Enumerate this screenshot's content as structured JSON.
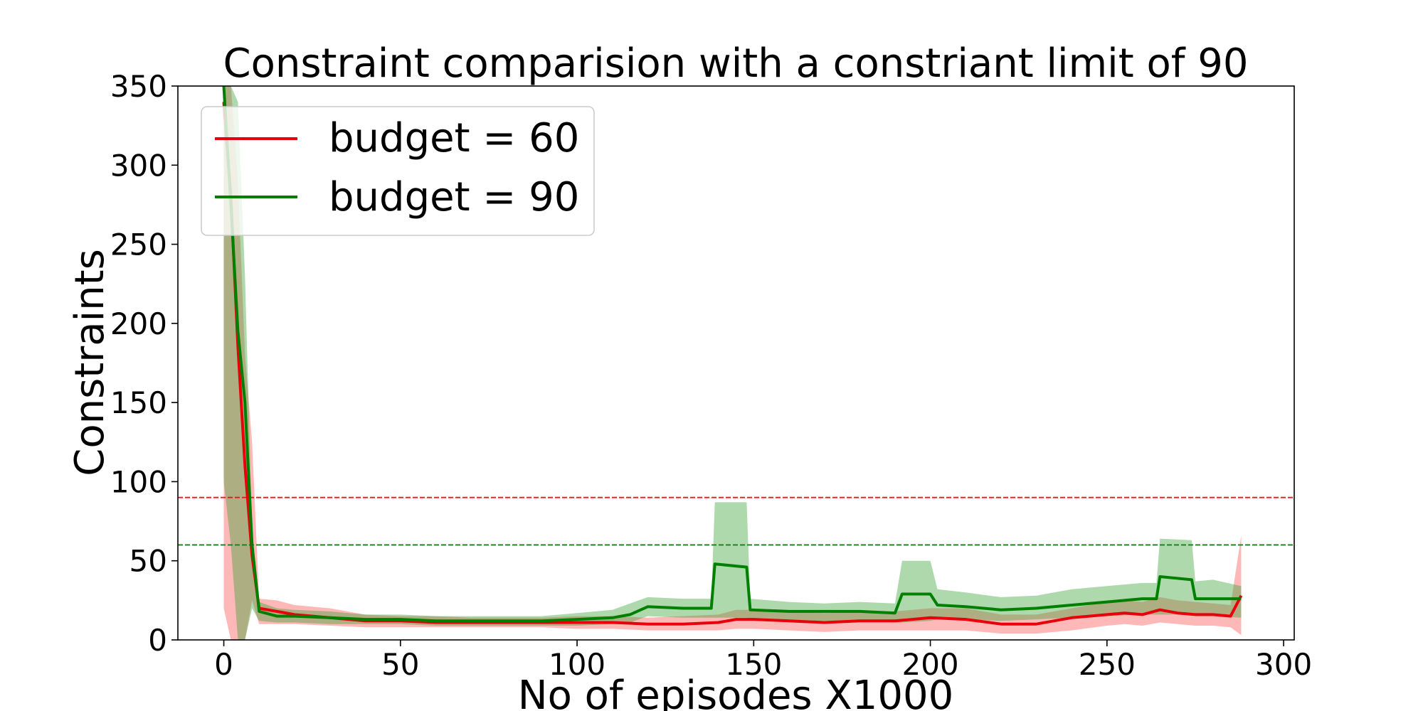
{
  "chart_data": {
    "type": "line",
    "title": "Constraint comparision with a constriant limit of 90",
    "xlabel": "No of episodes X1000",
    "ylabel": "Constraints",
    "xlim": [
      -13,
      303
    ],
    "ylim": [
      0,
      350
    ],
    "xticks": [
      0,
      50,
      100,
      150,
      200,
      250,
      300
    ],
    "yticks": [
      0,
      50,
      100,
      150,
      200,
      250,
      300,
      350
    ],
    "legend_position": "top-left",
    "reference_lines": [
      {
        "y": 90,
        "color": "#e41a1c",
        "style": "dashed"
      },
      {
        "y": 60,
        "color": "#1a7f1a",
        "style": "dashed"
      }
    ],
    "series": [
      {
        "name": "budget = 60",
        "color": "#e8000b",
        "band_color": "#ff4d4d",
        "x": [
          0,
          2,
          4,
          6,
          8,
          10,
          15,
          20,
          30,
          40,
          50,
          60,
          70,
          80,
          90,
          100,
          110,
          120,
          130,
          140,
          145,
          150,
          160,
          170,
          180,
          190,
          200,
          210,
          220,
          230,
          240,
          250,
          255,
          260,
          265,
          270,
          275,
          280,
          285,
          288
        ],
        "values": [
          340,
          280,
          185,
          110,
          53,
          20,
          18,
          16,
          14,
          12,
          12,
          11,
          11,
          11,
          11,
          11,
          11,
          10,
          10,
          11,
          13,
          13,
          12,
          11,
          12,
          12,
          14,
          13,
          10,
          10,
          14,
          16,
          17,
          16,
          19,
          17,
          16,
          16,
          15,
          28
        ],
        "lower": [
          20,
          0,
          0,
          0,
          25,
          10,
          10,
          10,
          9,
          8,
          8,
          8,
          8,
          8,
          8,
          7,
          7,
          6,
          6,
          6,
          7,
          7,
          6,
          5,
          6,
          6,
          6,
          6,
          4,
          4,
          6,
          9,
          10,
          9,
          11,
          10,
          9,
          9,
          8,
          3
        ],
        "upper": [
          350,
          350,
          290,
          180,
          125,
          26,
          25,
          22,
          20,
          16,
          15,
          15,
          14,
          14,
          14,
          15,
          15,
          14,
          15,
          16,
          19,
          19,
          18,
          17,
          18,
          18,
          20,
          20,
          16,
          16,
          20,
          24,
          25,
          24,
          27,
          25,
          24,
          23,
          22,
          66
        ]
      },
      {
        "name": "budget = 90",
        "color": "#007f00",
        "band_color": "#33a033",
        "x": [
          0,
          2,
          4,
          6,
          8,
          10,
          15,
          20,
          30,
          40,
          50,
          60,
          70,
          80,
          90,
          100,
          110,
          115,
          120,
          130,
          138,
          139,
          148,
          149,
          160,
          170,
          180,
          190,
          192,
          200,
          202,
          210,
          220,
          230,
          240,
          250,
          260,
          264,
          265,
          274,
          275,
          280,
          288
        ],
        "values": [
          350,
          275,
          195,
          150,
          60,
          18,
          15,
          15,
          14,
          13,
          13,
          12,
          12,
          12,
          12,
          13,
          14,
          16,
          21,
          20,
          20,
          48,
          46,
          19,
          18,
          18,
          18,
          17,
          29,
          29,
          22,
          21,
          19,
          20,
          22,
          24,
          26,
          26,
          40,
          38,
          26,
          26,
          26
        ],
        "lower": [
          100,
          60,
          0,
          0,
          20,
          12,
          11,
          11,
          10,
          10,
          10,
          9,
          9,
          9,
          9,
          9,
          10,
          11,
          15,
          14,
          14,
          14,
          14,
          13,
          12,
          12,
          12,
          11,
          11,
          12,
          13,
          13,
          12,
          13,
          14,
          15,
          16,
          16,
          16,
          16,
          15,
          15,
          14
        ],
        "upper": [
          350,
          350,
          340,
          230,
          70,
          24,
          20,
          19,
          18,
          16,
          16,
          15,
          15,
          15,
          15,
          17,
          19,
          23,
          27,
          26,
          26,
          87,
          87,
          26,
          24,
          23,
          24,
          23,
          50,
          50,
          32,
          30,
          27,
          28,
          32,
          34,
          36,
          36,
          64,
          63,
          37,
          38,
          34
        ]
      }
    ]
  }
}
